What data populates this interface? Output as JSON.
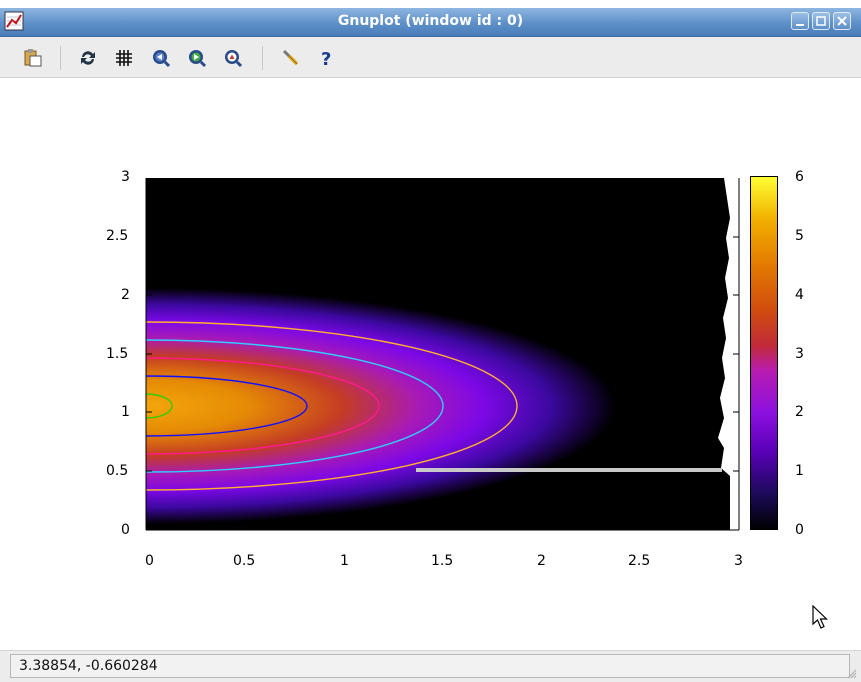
{
  "window": {
    "title": "Gnuplot (window id : 0)"
  },
  "toolbar": {
    "icons": [
      "copy-clipboard-icon",
      "replot-icon",
      "grid-icon",
      "zoom-previous-icon",
      "zoom-next-icon",
      "unzoom-icon",
      "settings-icon",
      "help-icon"
    ]
  },
  "plot": {
    "x_ticks": [
      "0",
      "0.5",
      "1",
      "1.5",
      "2",
      "2.5",
      "3"
    ],
    "y_ticks": [
      "0",
      "0.5",
      "1",
      "1.5",
      "2",
      "2.5",
      "3"
    ],
    "cbar_ticks": [
      "0",
      "1",
      "2",
      "3",
      "4",
      "5",
      "6"
    ],
    "chart_data": {
      "type": "heatmap",
      "xlim": [
        0,
        3
      ],
      "ylim": [
        0,
        3
      ],
      "cbrange": [
        0,
        6
      ],
      "colormap": [
        "#000000",
        "#1c0a5a",
        "#5a00b8",
        "#8c10e0",
        "#b81cb0",
        "#c22a3a",
        "#d04c10",
        "#e37a00",
        "#f2b000",
        "#ffff33"
      ],
      "peak": {
        "x": 0,
        "y": 1.05,
        "z": 5.5
      },
      "contours": [
        {
          "color": "#33cc00",
          "x_extent": [
            0,
            0.25
          ],
          "y_extent": [
            0.9,
            1.15
          ]
        },
        {
          "color": "#1010ff",
          "x_extent": [
            0,
            0.82
          ],
          "y_extent": [
            0.72,
            1.3
          ]
        },
        {
          "color": "#ff1a8c",
          "x_extent": [
            0,
            1.18
          ],
          "y_extent": [
            0.6,
            1.42
          ]
        },
        {
          "color": "#33ccff",
          "x_extent": [
            0,
            1.5
          ],
          "y_extent": [
            0.47,
            1.53
          ]
        },
        {
          "color": "#ffb030",
          "x_extent": [
            0,
            1.88
          ],
          "y_extent": [
            0.32,
            1.63
          ]
        }
      ],
      "grid": false
    }
  },
  "status": {
    "coords": "3.38854, -0.660284"
  }
}
